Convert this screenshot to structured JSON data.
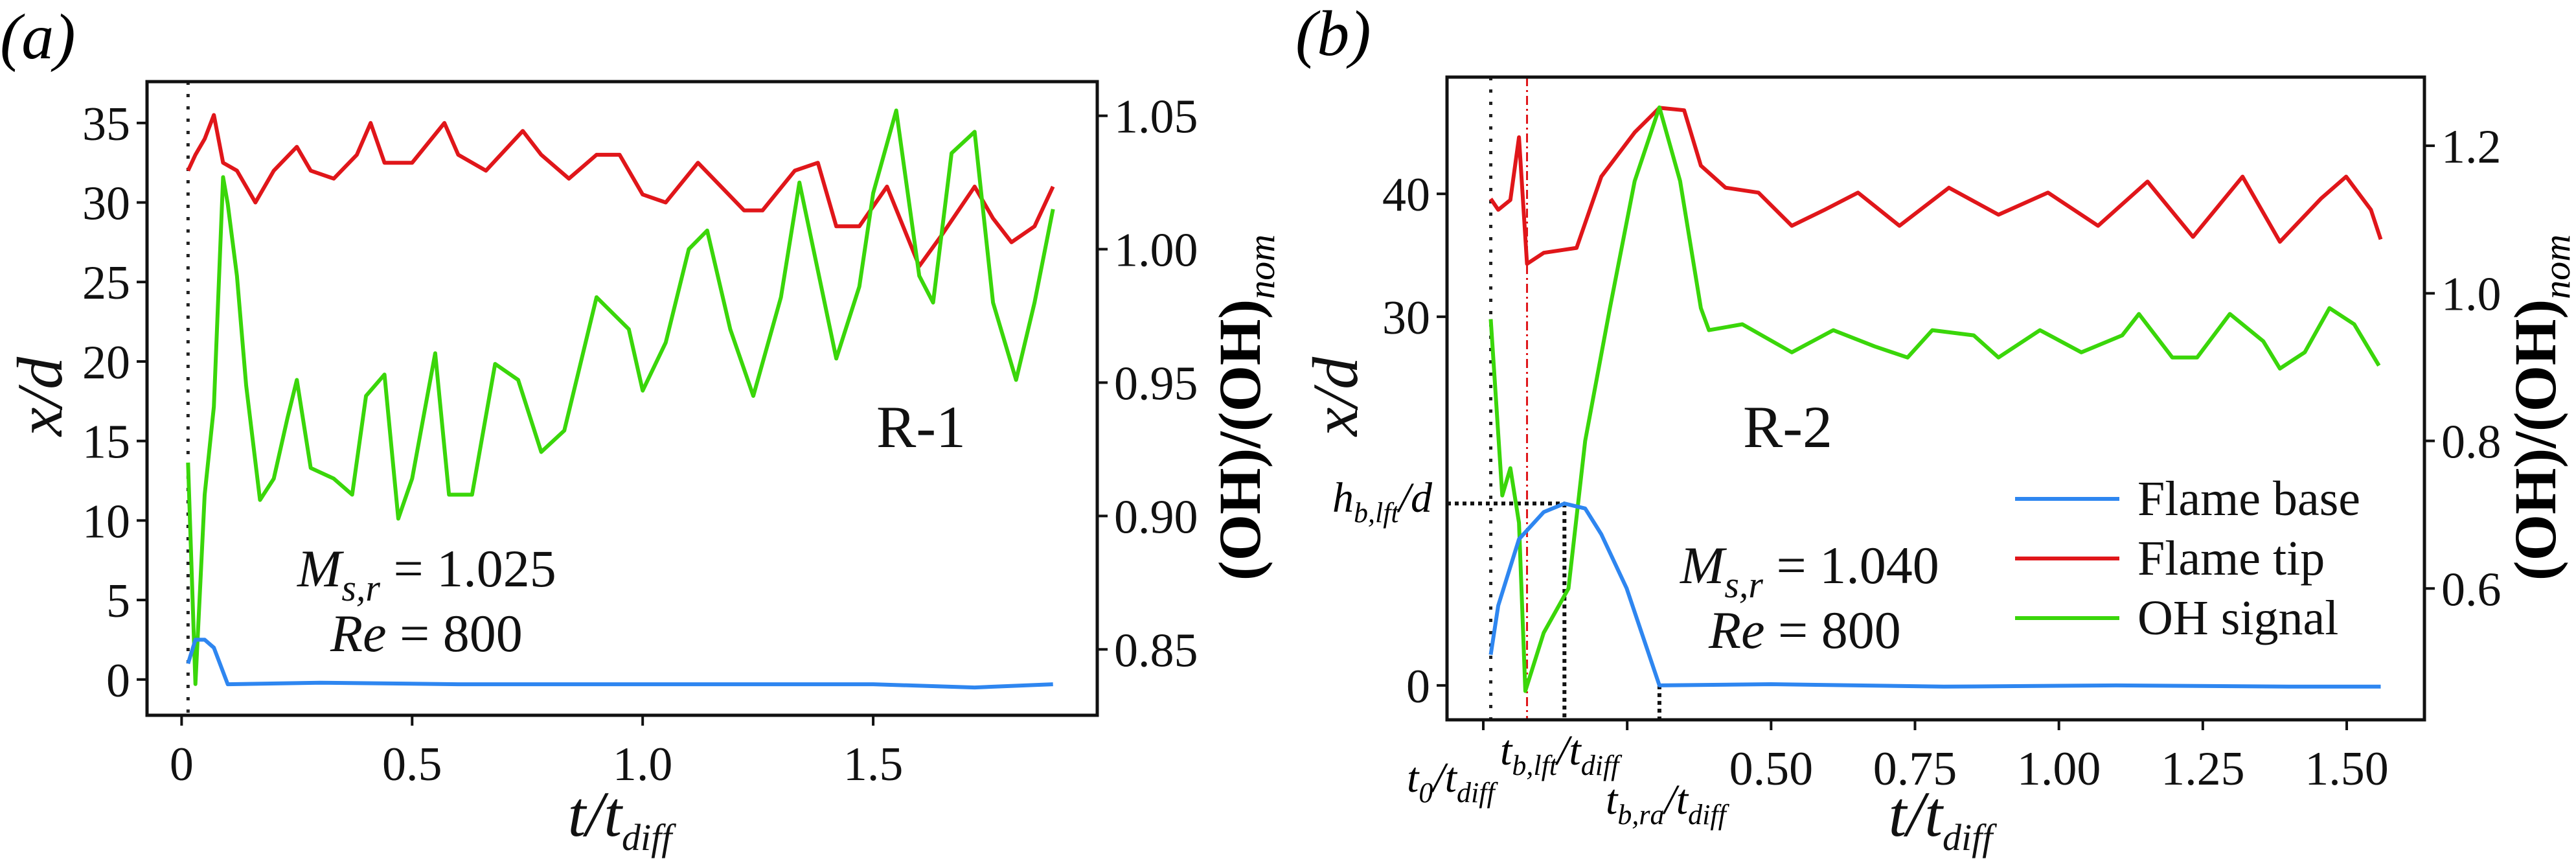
{
  "chart_data": [
    {
      "type": "line",
      "panel_label": "(a)",
      "xlabel": {
        "main": "t/t",
        "sub": "diff"
      },
      "ylabel": "x/d",
      "y2label": {
        "main": "(OH)/(OH)",
        "sub": "nom"
      },
      "run_label": "R-1",
      "params": {
        "m": "M",
        "m_sub": "s,r",
        "m_val": " = 1.025",
        "re": "Re",
        "re_val": " = 800"
      },
      "xlim": [
        -0.075,
        1.986
      ],
      "ylim": [
        -2.25,
        37.6
      ],
      "y2lim": [
        0.8253,
        1.0628
      ],
      "xticks": [
        0,
        0.5,
        1.0,
        1.5
      ],
      "xtick_labels": [
        "0",
        "0.5",
        "1.0",
        "1.5"
      ],
      "yticks": [
        0,
        5,
        10,
        15,
        20,
        25,
        30,
        35
      ],
      "ytick_labels": [
        "0",
        "5",
        "10",
        "15",
        "20",
        "25",
        "30",
        "35"
      ],
      "y2ticks": [
        0.85,
        0.9,
        0.95,
        1.0,
        1.05
      ],
      "y2tick_labels": [
        "0.85",
        "0.90",
        "0.95",
        "1.00",
        "1.05"
      ],
      "vlines": [
        {
          "x": 0.014,
          "style": "dotted",
          "color": "#222222"
        }
      ],
      "series": [
        {
          "axis": "left",
          "color": "#e0161a",
          "x": [
            0.014,
            0.03,
            0.05,
            0.07,
            0.09,
            0.12,
            0.16,
            0.2,
            0.25,
            0.28,
            0.33,
            0.38,
            0.41,
            0.44,
            0.5,
            0.57,
            0.6,
            0.66,
            0.74,
            0.78,
            0.84,
            0.9,
            0.95,
            1.0,
            1.05,
            1.12,
            1.17,
            1.22,
            1.26,
            1.33,
            1.38,
            1.42,
            1.47,
            1.53,
            1.6,
            1.65,
            1.72,
            1.76,
            1.8,
            1.85,
            1.89
          ],
          "y": [
            32,
            33,
            34,
            35.5,
            32.5,
            32,
            30,
            32,
            33.5,
            32,
            31.5,
            33,
            35,
            32.5,
            32.5,
            35,
            33,
            32,
            34.5,
            33,
            31.5,
            33,
            33,
            30.5,
            30,
            32.5,
            31,
            29.5,
            29.5,
            32,
            32.5,
            28.5,
            28.5,
            31,
            26,
            28,
            31,
            29,
            27.5,
            28.5,
            31
          ]
        },
        {
          "axis": "right",
          "color": "#3ad60a",
          "x": [
            0.014,
            0.03,
            0.05,
            0.07,
            0.09,
            0.1,
            0.12,
            0.14,
            0.17,
            0.2,
            0.23,
            0.25,
            0.28,
            0.33,
            0.37,
            0.4,
            0.44,
            0.47,
            0.5,
            0.55,
            0.58,
            0.63,
            0.68,
            0.73,
            0.78,
            0.83,
            0.9,
            0.97,
            1.0,
            1.05,
            1.1,
            1.14,
            1.19,
            1.24,
            1.3,
            1.34,
            1.38,
            1.42,
            1.47,
            1.5,
            1.55,
            1.6,
            1.63,
            1.67,
            1.72,
            1.76,
            1.81,
            1.85,
            1.89
          ],
          "y": [
            0.92,
            0.837,
            0.908,
            0.941,
            1.027,
            1.017,
            0.99,
            0.949,
            0.906,
            0.914,
            0.937,
            0.951,
            0.918,
            0.914,
            0.908,
            0.945,
            0.953,
            0.899,
            0.914,
            0.961,
            0.908,
            0.908,
            0.957,
            0.951,
            0.924,
            0.932,
            0.982,
            0.97,
            0.947,
            0.965,
            1.0,
            1.007,
            0.97,
            0.945,
            0.982,
            1.025,
            0.992,
            0.959,
            0.986,
            1.021,
            1.052,
            0.99,
            0.98,
            1.036,
            1.044,
            0.98,
            0.951,
            0.98,
            1.015
          ]
        },
        {
          "axis": "left",
          "color": "#2e86f0",
          "x": [
            0.014,
            0.03,
            0.05,
            0.07,
            0.1,
            0.3,
            0.6,
            1.0,
            1.5,
            1.72,
            1.89
          ],
          "y": [
            1,
            2.5,
            2.5,
            2,
            -0.3,
            -0.2,
            -0.3,
            -0.3,
            -0.3,
            -0.5,
            -0.3
          ]
        }
      ]
    },
    {
      "type": "line",
      "panel_label": "(b)",
      "xlabel": {
        "main": "t/t",
        "sub": "diff"
      },
      "ylabel": "x/d",
      "y2label": {
        "main": "(OH)/(OH)",
        "sub": "nom"
      },
      "run_label": "R-2",
      "params": {
        "m": "M",
        "m_sub": "s,r",
        "m_val": " = 1.040",
        "re": "Re",
        "re_val": " = 800"
      },
      "xlim": [
        -0.063,
        1.635
      ],
      "ylim": [
        -2.8,
        49.5
      ],
      "y2lim": [
        0.422,
        1.293
      ],
      "xticks": [
        0,
        0.25,
        0.5,
        0.75,
        1.0,
        1.25,
        1.5
      ],
      "xtick_labels": [
        "",
        "",
        "0.50",
        "0.75",
        "1.00",
        "1.25",
        "1.50"
      ],
      "yticks": [
        0,
        30,
        40
      ],
      "ytick_labels": [
        "0",
        "30",
        "40"
      ],
      "y2ticks": [
        0.6,
        0.8,
        1.0,
        1.2
      ],
      "y2tick_labels": [
        "0.6",
        "0.8",
        "1.0",
        "1.2"
      ],
      "annotations": {
        "h_lft": {
          "main": "h",
          "sub": "b,lft",
          "tail": "/d",
          "value": 14.8
        },
        "t0": {
          "main": "t",
          "sub": "0",
          "tail": "/t",
          "sub2": "diff",
          "value": 0.013
        },
        "t_lft": {
          "main": "t",
          "sub": "b,lft",
          "tail": "/t",
          "sub2": "diff",
          "value": 0.141
        },
        "t_ra": {
          "main": "t",
          "sub": "b,ra",
          "tail": "/t",
          "sub2": "diff",
          "value": 0.306
        },
        "oh_min_line": {
          "value": 0.076,
          "style": "dash-dot",
          "color": "#e0161a"
        }
      },
      "legend": {
        "position": "lower-right",
        "entries": [
          {
            "label": "Flame base",
            "color": "#2e86f0"
          },
          {
            "label": "Flame tip",
            "color": "#e0161a"
          },
          {
            "label": "OH signal",
            "color": "#3ad60a"
          }
        ]
      },
      "series": [
        {
          "name": "Flame tip",
          "axis": "left",
          "color": "#e0161a",
          "x": [
            0.013,
            0.026,
            0.047,
            0.062,
            0.076,
            0.105,
            0.162,
            0.205,
            0.263,
            0.306,
            0.349,
            0.378,
            0.421,
            0.478,
            0.536,
            0.593,
            0.651,
            0.723,
            0.809,
            0.895,
            0.981,
            1.068,
            1.154,
            1.233,
            1.319,
            1.384,
            1.455,
            1.499,
            1.542,
            1.559
          ],
          "y": [
            39.6,
            38.7,
            39.5,
            44.6,
            34.3,
            35.2,
            35.6,
            41.4,
            45,
            47,
            46.8,
            42.3,
            40.5,
            40.1,
            37.4,
            38.7,
            40.1,
            37.4,
            40.5,
            38.3,
            40.1,
            37.4,
            41,
            36.5,
            41.4,
            36.1,
            39.6,
            41.4,
            38.7,
            36.3
          ]
        },
        {
          "name": "OH signal",
          "axis": "right",
          "color": "#3ad60a",
          "x": [
            0.013,
            0.033,
            0.047,
            0.062,
            0.073,
            0.105,
            0.148,
            0.177,
            0.22,
            0.263,
            0.306,
            0.342,
            0.378,
            0.392,
            0.45,
            0.536,
            0.608,
            0.68,
            0.737,
            0.78,
            0.852,
            0.895,
            0.967,
            1.039,
            1.11,
            1.139,
            1.197,
            1.24,
            1.297,
            1.355,
            1.384,
            1.427,
            1.47,
            1.513,
            1.556
          ],
          "y": [
            0.965,
            0.726,
            0.763,
            0.689,
            0.461,
            0.54,
            0.6,
            0.8,
            0.98,
            1.152,
            1.252,
            1.152,
            0.98,
            0.95,
            0.958,
            0.92,
            0.95,
            0.928,
            0.913,
            0.95,
            0.943,
            0.913,
            0.95,
            0.92,
            0.943,
            0.972,
            0.913,
            0.913,
            0.972,
            0.935,
            0.898,
            0.92,
            0.98,
            0.958,
            0.902
          ]
        },
        {
          "name": "Flame base",
          "axis": "left",
          "color": "#2e86f0",
          "x": [
            0.013,
            0.026,
            0.062,
            0.105,
            0.141,
            0.177,
            0.205,
            0.249,
            0.306,
            0.5,
            0.8,
            1.1,
            1.4,
            1.559
          ],
          "y": [
            2.5,
            6.5,
            11.9,
            14.1,
            14.8,
            14.4,
            12.3,
            7.9,
            0,
            0.1,
            -0.1,
            0,
            -0.1,
            -0.1
          ]
        }
      ]
    }
  ]
}
